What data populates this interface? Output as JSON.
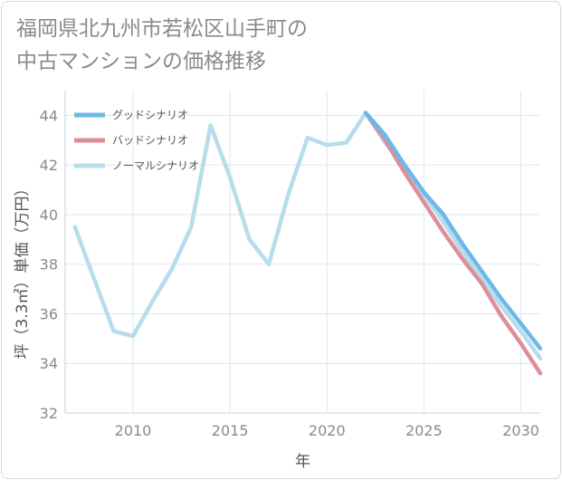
{
  "chart_data": {
    "type": "line",
    "title": "福岡県北九州市若松区山手町の\n中古マンションの価格推移",
    "xlabel": "年",
    "ylabel": "坪（3.3㎡）単価（万円）",
    "xlim": [
      2006.5,
      2031
    ],
    "ylim": [
      32,
      45
    ],
    "x_ticks": [
      2010,
      2015,
      2020,
      2025,
      2030
    ],
    "y_ticks": [
      32,
      34,
      36,
      38,
      40,
      42,
      44
    ],
    "grid": true,
    "legend_position": "top-left",
    "series": [
      {
        "name": "グッドシナリオ",
        "color": "#6cb8e8",
        "points": [
          [
            2022,
            44.1
          ],
          [
            2023,
            43.2
          ],
          [
            2024,
            42.0
          ],
          [
            2025,
            40.9
          ],
          [
            2026,
            40.0
          ],
          [
            2027,
            38.8
          ],
          [
            2028,
            37.7
          ],
          [
            2029,
            36.6
          ],
          [
            2030,
            35.6
          ],
          [
            2031,
            34.6
          ]
        ]
      },
      {
        "name": "バッドシナリオ",
        "color": "#dd8f97",
        "points": [
          [
            2022,
            44.1
          ],
          [
            2023,
            43.0
          ],
          [
            2024,
            41.7
          ],
          [
            2025,
            40.5
          ],
          [
            2026,
            39.3
          ],
          [
            2027,
            38.2
          ],
          [
            2028,
            37.2
          ],
          [
            2029,
            35.9
          ],
          [
            2030,
            34.8
          ],
          [
            2031,
            33.6
          ]
        ]
      },
      {
        "name": "ノーマルシナリオ",
        "color": "#b7dcec",
        "points": [
          [
            2007,
            39.5
          ],
          [
            2008,
            37.4
          ],
          [
            2009,
            35.3
          ],
          [
            2010,
            35.1
          ],
          [
            2011,
            36.5
          ],
          [
            2012,
            37.8
          ],
          [
            2013,
            39.5
          ],
          [
            2014,
            43.6
          ],
          [
            2015,
            41.5
          ],
          [
            2016,
            39.0
          ],
          [
            2017,
            38.0
          ],
          [
            2018,
            40.8
          ],
          [
            2019,
            43.1
          ],
          [
            2020,
            42.8
          ],
          [
            2021,
            42.9
          ],
          [
            2022,
            44.1
          ],
          [
            2023,
            42.9
          ],
          [
            2024,
            41.9
          ],
          [
            2025,
            40.8
          ],
          [
            2026,
            39.7
          ],
          [
            2027,
            38.5
          ],
          [
            2028,
            37.4
          ],
          [
            2029,
            36.3
          ],
          [
            2030,
            35.3
          ],
          [
            2031,
            34.2
          ]
        ]
      }
    ]
  }
}
